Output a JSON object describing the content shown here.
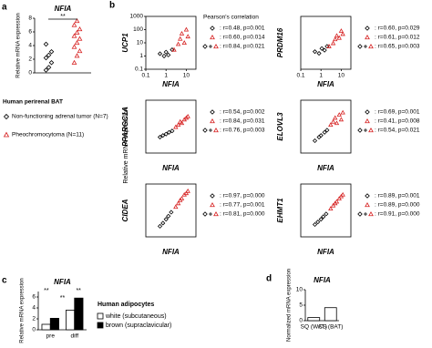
{
  "chart_data": [
    {
      "type": "dot",
      "panel": "a",
      "title": "NFIA",
      "y_label": "Relative mRNA expression",
      "ylim": [
        0,
        8
      ],
      "yticks": [
        0,
        2,
        4,
        6,
        8
      ],
      "annotations": [
        "**"
      ],
      "legend_title": "Human perirenal BAT",
      "series": [
        {
          "name": "Non-functioning adrenal tumor (N=7)",
          "color": "#000000",
          "marker": "diamond",
          "values": [
            0.4,
            0.8,
            1.5,
            2.2,
            2.6,
            3.1,
            4.2
          ]
        },
        {
          "name": "Pheochromocytoma (N=11)",
          "color": "#d62020",
          "marker": "triangle",
          "values": [
            1.5,
            2.5,
            3.2,
            3.8,
            4.4,
            5,
            5.4,
            5.9,
            6.4,
            7,
            7.6
          ]
        }
      ]
    },
    {
      "type": "scatter",
      "panel": "b",
      "figure_y_label": "Relative mRNA expression",
      "log_scale": true,
      "x_label": "NFIA",
      "y_label": "UCP1",
      "xlim": [
        0.1,
        30
      ],
      "ylim": [
        0.1,
        1000
      ],
      "xticks": [
        0.1,
        1,
        10
      ],
      "yticks": [
        0.1,
        1,
        10,
        100,
        1000
      ],
      "legend_title": "Pearson's correlation",
      "stats": [
        ": r=0.48, p=0.001",
        ": r=0.60, p=0.014",
        ": r=0.84, p=0.021"
      ],
      "series": [
        {
          "color": "#000000",
          "marker": "diamond",
          "x": [
            0.5,
            0.8,
            1,
            1.3,
            2
          ],
          "values": [
            1.5,
            1,
            2,
            1.2,
            3
          ]
        },
        {
          "color": "#d62020",
          "marker": "triangle",
          "x": [
            2.5,
            4,
            5,
            6,
            8,
            10,
            12
          ],
          "values": [
            3,
            8,
            20,
            50,
            10,
            100,
            30
          ]
        }
      ]
    },
    {
      "type": "scatter",
      "log_scale": true,
      "x_label": "NFIA",
      "y_label": "PRDM16",
      "xlim": [
        0.1,
        30
      ],
      "ylim": [
        0.1,
        100
      ],
      "xticks": [
        0.1,
        1,
        10
      ],
      "stats": [
        ": r=0.60, p=0.029",
        ": r=0.61, p=0.012",
        ": r=0.65, p=0.003"
      ],
      "series": [
        {
          "color": "#000000",
          "marker": "diamond",
          "x": [
            0.5,
            0.8,
            1.1,
            1.5,
            2
          ],
          "values": [
            1,
            0.8,
            1.5,
            1.2,
            2
          ]
        },
        {
          "color": "#d62020",
          "marker": "triangle",
          "x": [
            2.5,
            4,
            5,
            6,
            8,
            10,
            12
          ],
          "values": [
            2,
            3,
            5,
            8,
            6,
            15,
            10
          ]
        }
      ]
    },
    {
      "type": "scatter",
      "log_scale": true,
      "x_label": "NFIA",
      "y_label": "PPARGC1A",
      "xlim": [
        0.1,
        30
      ],
      "ylim": [
        0.1,
        100
      ],
      "stats": [
        ": r=0.54, p=0.002",
        ": r=0.84, p=0.031",
        ": r=0.76, p=0.003"
      ],
      "series": [
        {
          "color": "#000000",
          "marker": "diamond",
          "x": [
            0.5,
            0.7,
            1,
            1.4,
            2
          ],
          "values": [
            0.8,
            1,
            1.2,
            1.5,
            1.8
          ]
        },
        {
          "color": "#d62020",
          "marker": "triangle",
          "x": [
            3,
            4,
            5,
            6,
            8,
            10,
            12
          ],
          "values": [
            3,
            4,
            6,
            5,
            8,
            10,
            12
          ]
        }
      ]
    },
    {
      "type": "scatter",
      "log_scale": true,
      "x_label": "NFIA",
      "y_label": "ELOVL3",
      "xlim": [
        0.1,
        30
      ],
      "ylim": [
        0.1,
        100
      ],
      "stats": [
        ": r=0.69, p=0.001",
        ": r=0.41, p=0.008",
        ": r=0.54, p=0.021"
      ],
      "series": [
        {
          "color": "#000000",
          "marker": "diamond",
          "x": [
            0.5,
            0.8,
            1,
            1.5,
            2
          ],
          "values": [
            0.5,
            0.8,
            1,
            1.5,
            2
          ]
        },
        {
          "color": "#d62020",
          "marker": "triangle",
          "x": [
            3,
            4,
            5,
            6,
            8,
            10,
            12
          ],
          "values": [
            4,
            6,
            10,
            5,
            15,
            8,
            20
          ]
        }
      ]
    },
    {
      "type": "scatter",
      "log_scale": true,
      "x_label": "NFIA",
      "y_label": "CIDEA",
      "xlim": [
        0.1,
        30
      ],
      "ylim": [
        0.1,
        100
      ],
      "stats": [
        ": r=0.97, p=0.000",
        ": r=0.77, p=0.001",
        ": r=0.81, p=0.000"
      ],
      "series": [
        {
          "color": "#000000",
          "marker": "diamond",
          "x": [
            0.5,
            0.7,
            1,
            1.3,
            1.8
          ],
          "values": [
            0.4,
            0.6,
            1,
            1.5,
            2.5
          ]
        },
        {
          "color": "#d62020",
          "marker": "triangle",
          "x": [
            3,
            4,
            5,
            6,
            8,
            10,
            12
          ],
          "values": [
            5,
            8,
            12,
            15,
            25,
            30,
            40
          ]
        }
      ]
    },
    {
      "type": "scatter",
      "log_scale": true,
      "x_label": "NFIA",
      "y_label": "EHMT1",
      "xlim": [
        0.1,
        30
      ],
      "ylim": [
        0.1,
        100
      ],
      "stats": [
        ": r=0.89, p=0.001",
        ": r=0.89, p=0.000",
        ": r=0.91, p=0.000"
      ],
      "series": [
        {
          "color": "#000000",
          "marker": "diamond",
          "x": [
            0.5,
            0.7,
            1,
            1.3,
            1.8
          ],
          "values": [
            0.5,
            0.7,
            1,
            1.4,
            2
          ]
        },
        {
          "color": "#d62020",
          "marker": "triangle",
          "x": [
            3,
            4,
            5,
            6,
            8,
            10,
            12
          ],
          "values": [
            4,
            6,
            8,
            10,
            15,
            20,
            25
          ]
        }
      ]
    },
    {
      "type": "bar",
      "panel": "c",
      "title": "NFIA",
      "y_label": "Relative mRNA expression",
      "categories": [
        "pre",
        "diff"
      ],
      "ylim": [
        0,
        7
      ],
      "yticks": [
        0,
        2,
        4,
        6
      ],
      "legend_title": "Human adipocytes",
      "annotations": [
        "**",
        "**",
        "**"
      ],
      "series": [
        {
          "name": "white (subcutaneous)",
          "color": "#ffffff",
          "values": [
            1,
            3.6
          ]
        },
        {
          "name": "brown (supraclavicular)",
          "color": "#000000",
          "values": [
            2.1,
            5.8
          ]
        }
      ]
    },
    {
      "type": "bar",
      "panel": "d",
      "title": "NFIA",
      "y_label": "Normalized mRNA expression",
      "categories": [
        "SQ (WAT)",
        "CS (BAT)"
      ],
      "ylim": [
        0,
        10
      ],
      "yticks": [
        0,
        5,
        10
      ],
      "color": "#ffffff",
      "values": [
        1,
        4.2
      ]
    }
  ]
}
